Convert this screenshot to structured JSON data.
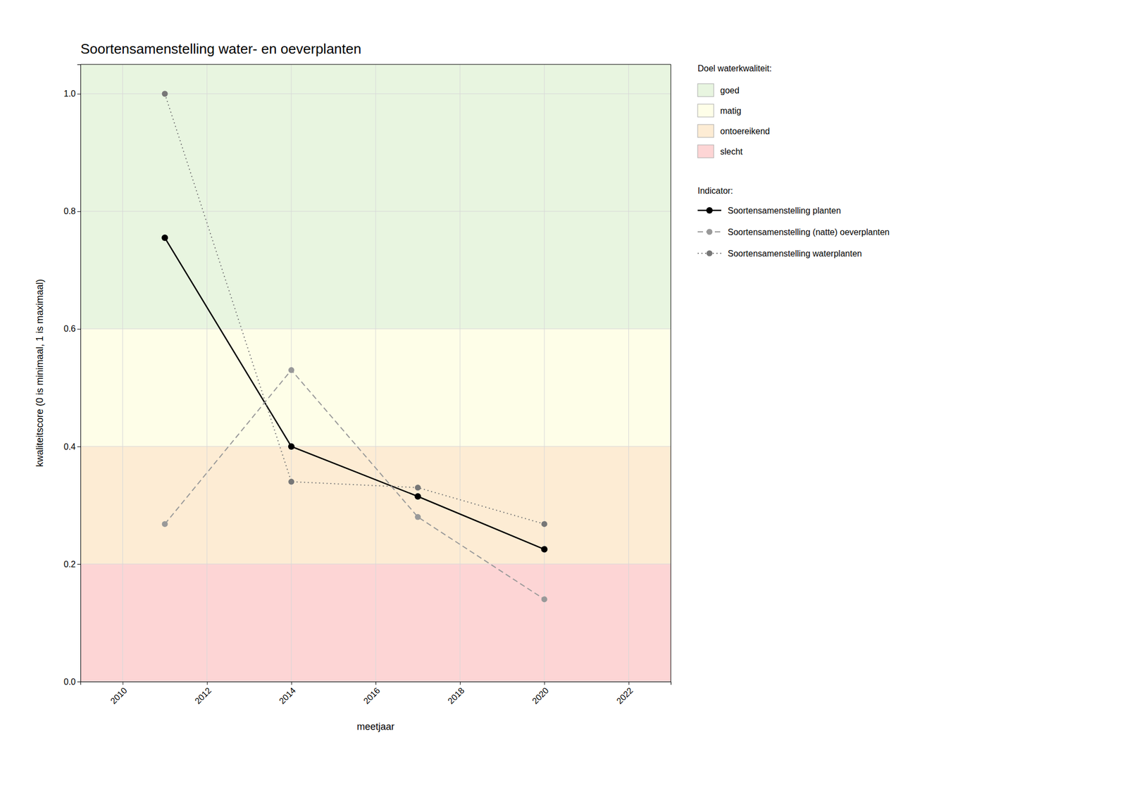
{
  "chart_data": {
    "type": "line",
    "title": "Soortensamenstelling water- en oeverplanten",
    "x_label": "meetjaar",
    "y_label": "kwaliteitscore (0 is minimaal, 1 is maximaal)",
    "xlim": [
      2009,
      2023
    ],
    "ylim": [
      0.0,
      1.05
    ],
    "xticks": [
      2010,
      2012,
      2014,
      2016,
      2018,
      2020,
      2022
    ],
    "yticks": [
      {
        "value": 0.0,
        "label": "0.0"
      },
      0.2,
      0.4,
      0.6,
      0.8,
      {
        "value": 1.0,
        "label": "1.0"
      }
    ],
    "grid": true,
    "legend": "right",
    "x": [
      2011,
      2014,
      2017,
      2020
    ],
    "series": [
      {
        "name": "Soortensamenstelling planten",
        "color": "#000000",
        "line_style": "solid",
        "marker": "circle",
        "values": [
          0.755,
          0.4,
          0.315,
          0.225
        ]
      },
      {
        "name": "Soortensamenstelling (natte) oeverplanten",
        "color": "#999999",
        "line_style": "dashed",
        "marker": "circle",
        "values": [
          0.268,
          0.53,
          0.28,
          0.14
        ]
      },
      {
        "name": "Soortensamenstelling waterplanten",
        "color": "#777777",
        "line_style": "dotted",
        "marker": "circle",
        "values": [
          1.0,
          0.34,
          0.33,
          0.268
        ]
      }
    ],
    "legend_title": "Indicator:",
    "zone_legend_title": "Doel waterkwaliteit:",
    "zones": [
      {
        "name": "goed",
        "ymin": 0.6,
        "ymax": 1.05,
        "color": "#e8f5e0"
      },
      {
        "name": "matig",
        "ymin": 0.4,
        "ymax": 0.6,
        "color": "#fefee8"
      },
      {
        "name": "ontoereikend",
        "ymin": 0.2,
        "ymax": 0.4,
        "color": "#fdecd4"
      },
      {
        "name": "slecht",
        "ymin": 0.0,
        "ymax": 0.2,
        "color": "#fdd5d5"
      }
    ]
  }
}
